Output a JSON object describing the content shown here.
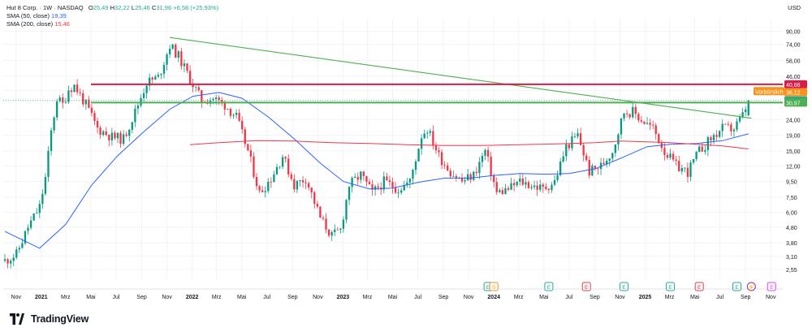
{
  "header": {
    "symbol": "Hut 8 Corp. · 1W · NASDAQ",
    "ohlc": [
      {
        "k": "O",
        "v": "25,49"
      },
      {
        "k": "H",
        "v": "32,22"
      },
      {
        "k": "L",
        "v": "25,46"
      },
      {
        "k": "C",
        "v": "31,96"
      }
    ],
    "change": "+6,58 (+25,93%)",
    "sma50": {
      "label": "SMA (50, close)",
      "value": "19,39",
      "color": "#2962ff"
    },
    "sma200": {
      "label": "SMA (200, close)",
      "value": "15,46",
      "color": "#f23645"
    }
  },
  "currency": "USD",
  "brand": {
    "name": "TradingView"
  },
  "chart_data": {
    "type": "candlestick",
    "scale": "log",
    "ylim": [
      2.2,
      110
    ],
    "y_ticks": [
      2.55,
      3.1,
      3.8,
      4.8,
      6.0,
      7.5,
      9.5,
      12.0,
      15.0,
      19.0,
      24.0,
      37.0,
      46.0,
      58.0,
      74.0,
      90.0
    ],
    "y_tick_labels": [
      "2,55",
      "3,10",
      "3,80",
      "4,80",
      "6,00",
      "7,50",
      "9,50",
      "12,00",
      "15,00",
      "19,00",
      "24,00",
      "37,00",
      "46,00",
      "58,00",
      "74,00",
      "90,00"
    ],
    "x_ticks": [
      "Nov",
      "2021",
      "Mrz",
      "Mai",
      "Jul",
      "Sep",
      "Nov",
      "2022",
      "Mrz",
      "Mai",
      "Jul",
      "Sep",
      "Nov",
      "2023",
      "Mrz",
      "Mai",
      "Jul",
      "Sep",
      "Nov",
      "2024",
      "Mrz",
      "Mai",
      "Jul",
      "Sep",
      "Nov",
      "2025",
      "Mrz",
      "Mai",
      "Jul",
      "Sep",
      "Nov"
    ],
    "x_tick_bold": [
      "2021",
      "2022",
      "2023",
      "2024",
      "2025"
    ],
    "x_range": [
      "2020-10-01",
      "2025-11-30"
    ],
    "anchors": [
      [
        "2020-10-05",
        2.9
      ],
      [
        "2020-11-02",
        3.2
      ],
      [
        "2020-11-30",
        4.8
      ],
      [
        "2020-12-28",
        6.5
      ],
      [
        "2021-01-11",
        10.0
      ],
      [
        "2021-01-25",
        20.0
      ],
      [
        "2021-02-08",
        33.0
      ],
      [
        "2021-02-22",
        30.0
      ],
      [
        "2021-03-08",
        38.0
      ],
      [
        "2021-03-22",
        40.0
      ],
      [
        "2021-04-19",
        30.0
      ],
      [
        "2021-05-17",
        21.0
      ],
      [
        "2021-06-21",
        18.5
      ],
      [
        "2021-07-19",
        18.0
      ],
      [
        "2021-08-16",
        27.0
      ],
      [
        "2021-09-13",
        42.0
      ],
      [
        "2021-10-11",
        45.0
      ],
      [
        "2021-11-08",
        73.0
      ],
      [
        "2021-11-29",
        62.0
      ],
      [
        "2021-12-27",
        44.0
      ],
      [
        "2022-01-24",
        32.0
      ],
      [
        "2022-02-21",
        33.0
      ],
      [
        "2022-03-21",
        30.0
      ],
      [
        "2022-04-18",
        25.0
      ],
      [
        "2022-05-16",
        15.0
      ],
      [
        "2022-06-13",
        8.0
      ],
      [
        "2022-07-11",
        10.0
      ],
      [
        "2022-08-08",
        14.0
      ],
      [
        "2022-09-05",
        9.0
      ],
      [
        "2022-10-03",
        10.0
      ],
      [
        "2022-11-07",
        5.5
      ],
      [
        "2022-12-05",
        4.2
      ],
      [
        "2022-12-26",
        4.6
      ],
      [
        "2023-01-16",
        9.0
      ],
      [
        "2023-02-13",
        10.5
      ],
      [
        "2023-03-13",
        8.0
      ],
      [
        "2023-04-10",
        9.5
      ],
      [
        "2023-05-15",
        8.5
      ],
      [
        "2023-06-12",
        9.5
      ],
      [
        "2023-07-10",
        19.0
      ],
      [
        "2023-07-24",
        21.0
      ],
      [
        "2023-08-21",
        14.0
      ],
      [
        "2023-09-18",
        11.0
      ],
      [
        "2023-10-16",
        9.5
      ],
      [
        "2023-11-13",
        10.5
      ],
      [
        "2023-12-11",
        15.0
      ],
      [
        "2024-01-08",
        8.0
      ],
      [
        "2024-02-05",
        8.5
      ],
      [
        "2024-03-04",
        9.5
      ],
      [
        "2024-04-01",
        9.0
      ],
      [
        "2024-04-29",
        8.5
      ],
      [
        "2024-05-27",
        9.5
      ],
      [
        "2024-06-24",
        16.0
      ],
      [
        "2024-07-22",
        19.0
      ],
      [
        "2024-08-19",
        11.0
      ],
      [
        "2024-09-16",
        12.0
      ],
      [
        "2024-10-14",
        15.0
      ],
      [
        "2024-11-11",
        27.0
      ],
      [
        "2024-12-02",
        27.0
      ],
      [
        "2024-12-23",
        24.0
      ],
      [
        "2025-01-20",
        21.0
      ],
      [
        "2025-02-17",
        15.0
      ],
      [
        "2025-03-17",
        12.0
      ],
      [
        "2025-04-14",
        11.0
      ],
      [
        "2025-05-12",
        15.0
      ],
      [
        "2025-06-09",
        18.0
      ],
      [
        "2025-07-07",
        21.0
      ],
      [
        "2025-08-04",
        21.0
      ],
      [
        "2025-08-25",
        25.49
      ],
      [
        "2025-09-08",
        31.96
      ]
    ],
    "lines": {
      "sma50": [
        [
          "2020-10-05",
          4.5
        ],
        [
          "2020-12-28",
          3.5
        ],
        [
          "2021-03-01",
          5.0
        ],
        [
          "2021-05-03",
          9.0
        ],
        [
          "2021-07-05",
          14.0
        ],
        [
          "2021-09-06",
          20.0
        ],
        [
          "2021-11-08",
          28.0
        ],
        [
          "2022-01-03",
          34.0
        ],
        [
          "2022-03-07",
          36.0
        ],
        [
          "2022-05-02",
          33.0
        ],
        [
          "2022-07-04",
          25.0
        ],
        [
          "2022-09-05",
          18.0
        ],
        [
          "2022-11-07",
          12.5
        ],
        [
          "2023-01-02",
          9.5
        ],
        [
          "2023-03-06",
          8.5
        ],
        [
          "2023-05-01",
          8.6
        ],
        [
          "2023-07-03",
          9.4
        ],
        [
          "2023-09-04",
          10.0
        ],
        [
          "2023-11-06",
          10.0
        ],
        [
          "2024-01-01",
          10.4
        ],
        [
          "2024-03-04",
          10.7
        ],
        [
          "2024-05-06",
          10.6
        ],
        [
          "2024-07-01",
          10.7
        ],
        [
          "2024-09-02",
          11.5
        ],
        [
          "2024-11-04",
          13.5
        ],
        [
          "2025-01-06",
          16.0
        ],
        [
          "2025-03-03",
          16.6
        ],
        [
          "2025-05-05",
          16.8
        ],
        [
          "2025-07-07",
          17.5
        ],
        [
          "2025-09-08",
          19.39
        ]
      ],
      "sma200": [
        [
          "2021-12-27",
          16.5
        ],
        [
          "2022-03-07",
          17.0
        ],
        [
          "2022-06-06",
          17.5
        ],
        [
          "2022-09-05",
          17.4
        ],
        [
          "2022-12-05",
          17.0
        ],
        [
          "2023-03-06",
          16.8
        ],
        [
          "2023-06-05",
          16.5
        ],
        [
          "2023-09-04",
          16.3
        ],
        [
          "2023-12-04",
          16.3
        ],
        [
          "2024-03-04",
          16.5
        ],
        [
          "2024-06-03",
          16.7
        ],
        [
          "2024-09-02",
          17.0
        ],
        [
          "2024-11-04",
          17.4
        ],
        [
          "2025-01-06",
          17.2
        ],
        [
          "2025-03-03",
          17.0
        ],
        [
          "2025-05-05",
          16.6
        ],
        [
          "2025-07-07",
          16.2
        ],
        [
          "2025-09-08",
          15.46
        ]
      ],
      "trendline": [
        [
          "2021-11-08",
          82.0
        ],
        [
          "2025-09-15",
          24.5
        ]
      ]
    },
    "hlines": [
      {
        "price": 40.66,
        "label": "40,66",
        "color": "#d81b48"
      },
      {
        "price": 30.97,
        "label": "30,97",
        "color": "#4caf50"
      }
    ],
    "price_tags": [
      {
        "price": 40.66,
        "label": "40,66",
        "bg": "#d81b48"
      },
      {
        "price": 36.74,
        "label": "Vorbörslich",
        "bg": "#f7931a"
      },
      {
        "price": 36.12,
        "label": "36,12",
        "bg": "#f7931a"
      },
      {
        "price": 31.96,
        "label": "31,96",
        "bg": "#22ab94"
      },
      {
        "price": 30.97,
        "label": "30,97",
        "bg": "#4caf50"
      }
    ],
    "last_price_line": 31.96,
    "events": [
      {
        "date": "2023-12-18",
        "type": "E",
        "color": "#22ab94"
      },
      {
        "date": "2024-01-01",
        "type": "S",
        "color": "#f7931a"
      },
      {
        "date": "2024-05-13",
        "type": "E",
        "color": "#22ab94"
      },
      {
        "date": "2024-08-12",
        "type": "E",
        "color": "#f23645"
      },
      {
        "date": "2024-11-11",
        "type": "E",
        "color": "#22ab94"
      },
      {
        "date": "2025-03-03",
        "type": "E",
        "color": "#22ab94"
      },
      {
        "date": "2025-05-12",
        "type": "E",
        "color": "#f23645"
      },
      {
        "date": "2025-08-11",
        "type": "E",
        "color": "#22ab94"
      },
      {
        "date": "2025-09-15",
        "type": "⚡",
        "color": "#9c27b0"
      },
      {
        "date": "2025-11-03",
        "type": "E",
        "color": "#e040fb"
      }
    ]
  }
}
